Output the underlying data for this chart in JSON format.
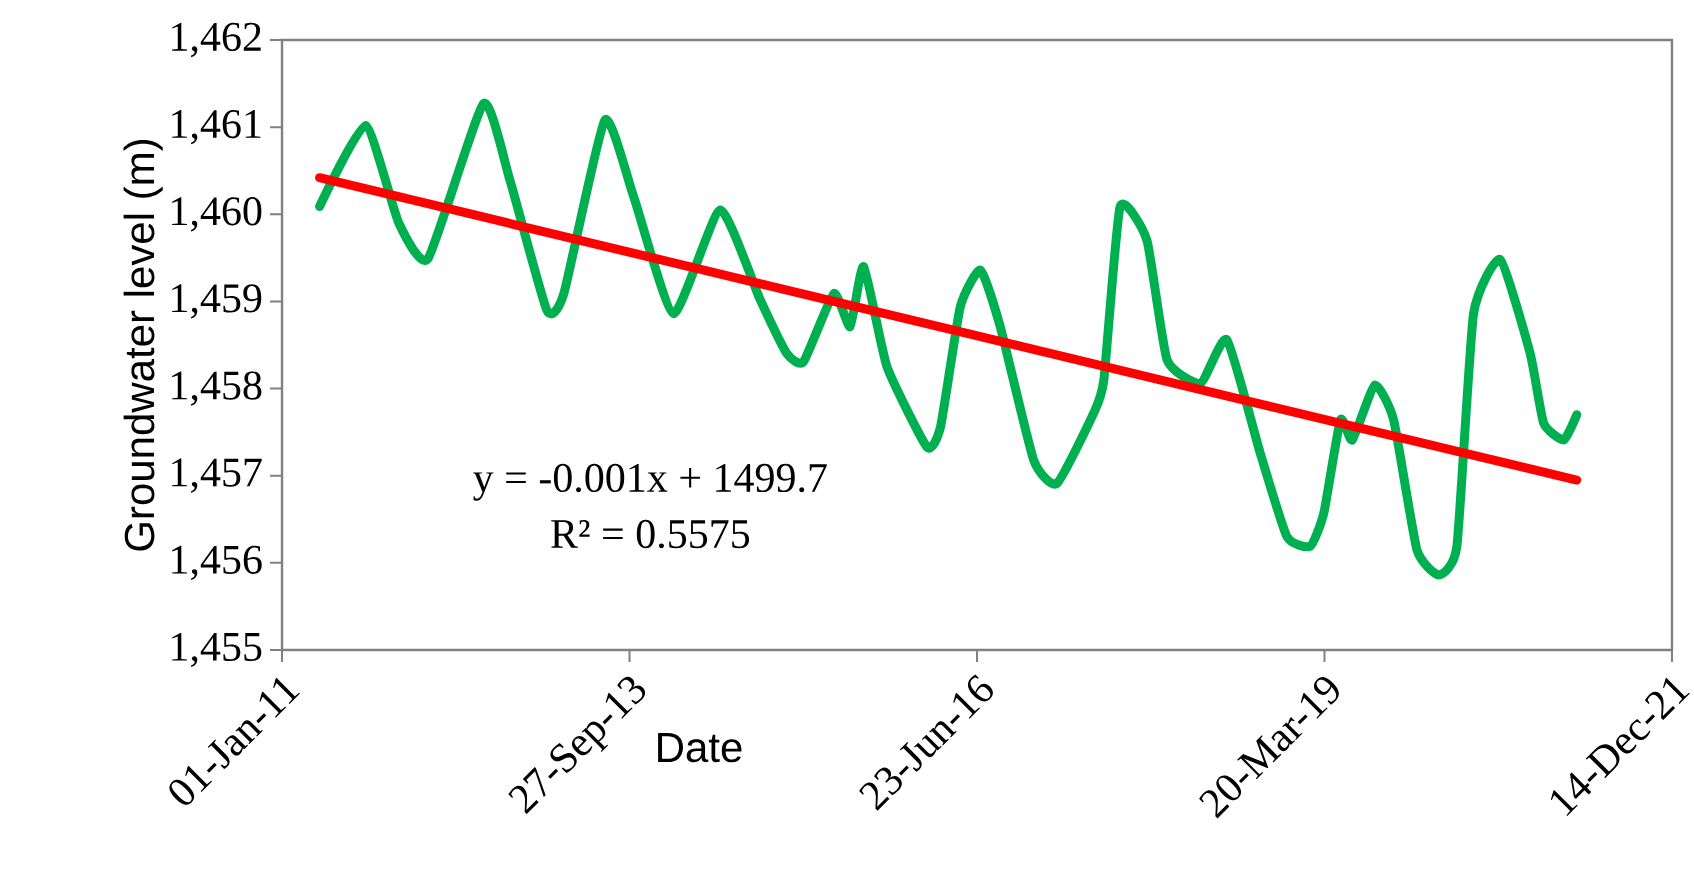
{
  "chart_data": {
    "type": "line",
    "xlabel": "Date",
    "ylabel": "Groundwater level (m)",
    "xlim": [
      "2011-01-01",
      "2021-12-14"
    ],
    "xticks": [
      {
        "value": "2011-01-01",
        "label": "01-Jan-11"
      },
      {
        "value": "2013-09-27",
        "label": "27-Sep-13"
      },
      {
        "value": "2016-06-23",
        "label": "23-Jun-16"
      },
      {
        "value": "2019-03-20",
        "label": "20-Mar-19"
      },
      {
        "value": "2021-12-14",
        "label": "14-Dec-21"
      }
    ],
    "ylim": [
      1455,
      1462
    ],
    "yticks": [
      {
        "value": 1455,
        "label": "1,455"
      },
      {
        "value": 1456,
        "label": "1,456"
      },
      {
        "value": 1457,
        "label": "1,457"
      },
      {
        "value": 1458,
        "label": "1,458"
      },
      {
        "value": 1459,
        "label": "1,459"
      },
      {
        "value": 1460,
        "label": "1,460"
      },
      {
        "value": 1461,
        "label": "1,461"
      },
      {
        "value": 1462,
        "label": "1,462"
      }
    ],
    "grid": false,
    "legend": false,
    "marker": "none",
    "line_style": "solid",
    "series": [
      {
        "color": "#00b050",
        "x": [
          "2011-04-19",
          "2011-08-29",
          "2011-12-03",
          "2012-02-25",
          "2012-08-03",
          "2012-10-18",
          "2013-02-01",
          "2013-03-22",
          "2013-07-18",
          "2013-10-09",
          "2014-02-01",
          "2014-06-15",
          "2014-10-08",
          "2014-12-24",
          "2015-02-10",
          "2015-05-08",
          "2015-06-24",
          "2015-08-02",
          "2015-10-08",
          "2016-01-31",
          "2016-03-10",
          "2016-05-06",
          "2016-07-03",
          "2016-08-29",
          "2016-12-03",
          "2017-02-08",
          "2017-05-25",
          "2017-06-23",
          "2017-08-09",
          "2017-10-25",
          "2017-12-22",
          "2018-03-28",
          "2018-06-12",
          "2018-09-16",
          "2018-12-02",
          "2019-02-07",
          "2019-03-18",
          "2019-05-05",
          "2019-06-08",
          "2019-08-12",
          "2019-10-05",
          "2019-12-11",
          "2020-02-12",
          "2020-04-04",
          "2020-05-22",
          "2020-08-07",
          "2020-11-01",
          "2020-12-10",
          "2021-02-06",
          "2021-03-15"
        ],
        "values": [
          1460.09,
          1461.02,
          1459.9,
          1459.49,
          1461.27,
          1460.39,
          1458.9,
          1459.09,
          1461.08,
          1460.2,
          1458.86,
          1460.05,
          1459.02,
          1458.4,
          1458.31,
          1459.09,
          1458.71,
          1459.4,
          1458.25,
          1457.33,
          1457.56,
          1458.94,
          1459.36,
          1458.71,
          1457.18,
          1456.91,
          1457.72,
          1458.1,
          1460.09,
          1459.7,
          1458.33,
          1458.06,
          1458.56,
          1457.26,
          1456.3,
          1456.19,
          1456.57,
          1457.64,
          1457.41,
          1458.04,
          1457.64,
          1456.15,
          1455.86,
          1456.19,
          1458.86,
          1459.48,
          1458.4,
          1457.6,
          1457.41,
          1457.7
        ]
      },
      {
        "color": "#ff0000",
        "x": [
          "2011-04-19",
          "2021-03-15"
        ],
        "values": [
          1460.42,
          1456.95
        ]
      }
    ],
    "annotations": [
      "y = -0.001x + 1499.7",
      "R² = 0.5575"
    ]
  }
}
